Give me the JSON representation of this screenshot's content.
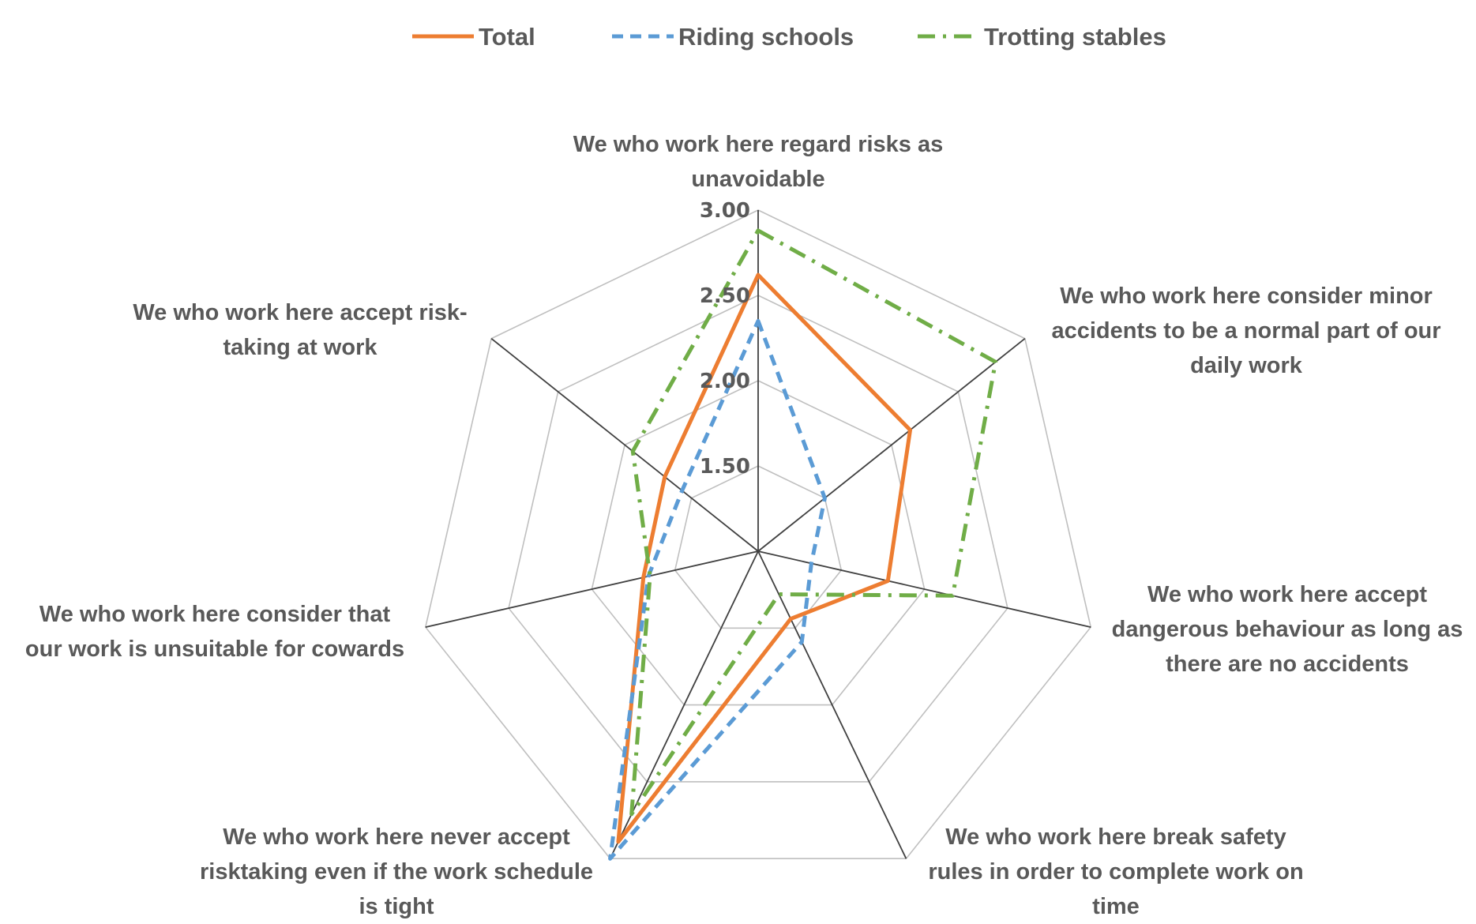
{
  "chart_data": {
    "type": "radar",
    "title": "",
    "categories": [
      "We who work here regard risks as unavoidable",
      "We who work here consider minor accidents to be a normal part of our daily work",
      "We who work here accept dangerous behaviour as long as there are no accidents",
      "We who work here break safety rules in order to complete work on time",
      "We who work here never accept risktaking even if the work schedule is tight",
      "We who work here consider that our work is unsuitable for cowards",
      "We who work here accept risk-taking at work"
    ],
    "category_label_lines": [
      [
        "We who work here regard risks as",
        "unavoidable"
      ],
      [
        "We who work here consider minor",
        "accidents to be a normal part of our",
        "daily work"
      ],
      [
        "We who work here accept",
        "dangerous behaviour as long as",
        "there are no accidents"
      ],
      [
        "We who work here break safety",
        "rules in order to complete work on",
        "time"
      ],
      [
        "We who work here never accept",
        "risktaking even if the work schedule",
        "is tight"
      ],
      [
        "We who work here consider that",
        "our work is unsuitable for cowards"
      ],
      [
        "We who work here accept risk-",
        "taking at work"
      ]
    ],
    "rmin": 1.0,
    "rmax": 3.0,
    "ticks": [
      1.5,
      2.0,
      2.5,
      3.0
    ],
    "tick_labels": [
      "1.50",
      "2.00",
      "2.50",
      "3.00"
    ],
    "grid": true,
    "legend_position": "top",
    "series": [
      {
        "name": "Total",
        "color": "#ED7D31",
        "dash": "solid",
        "values": [
          2.62,
          2.14,
          1.78,
          1.44,
          2.89,
          1.69,
          1.7
        ]
      },
      {
        "name": "Riding schools",
        "color": "#5B9BD5",
        "dash": "dash",
        "values": [
          2.35,
          1.5,
          1.32,
          1.59,
          3.0,
          1.66,
          1.57
        ]
      },
      {
        "name": "Trotting stables",
        "color": "#70AD47",
        "dash": "dashdot",
        "values": [
          2.88,
          2.78,
          2.17,
          1.28,
          2.71,
          1.65,
          1.94
        ]
      }
    ]
  }
}
